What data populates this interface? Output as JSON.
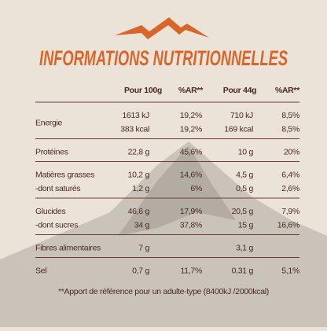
{
  "title": "INFORMATIONS NUTRITIONNELLES",
  "table": {
    "header": [
      "Pour 100g",
      "%AR**",
      "Pour 44g",
      "%AR**"
    ],
    "groups": [
      {
        "label": "Energie",
        "lines": [
          {
            "cells": [
              "1613 kJ",
              "19,2%",
              "710 kJ",
              "8,5%"
            ]
          },
          {
            "cells": [
              "383 kcal",
              "19,2%",
              "169 kcal",
              "8,5%"
            ]
          }
        ]
      },
      {
        "lines": [
          {
            "label": "Protéines",
            "cells": [
              "22,8 g",
              "45,6%",
              "10 g",
              "20%"
            ]
          }
        ]
      },
      {
        "lines": [
          {
            "label": "Matières grasses",
            "cells": [
              "10,2 g",
              "14,6%",
              "4,5 g",
              "6,4%"
            ]
          },
          {
            "label": "-dont saturés",
            "cells": [
              "1,2 g",
              "6%",
              "0,5 g",
              "2,6%"
            ]
          }
        ]
      },
      {
        "lines": [
          {
            "label": "Glucides",
            "cells": [
              "46,6 g",
              "17,9%",
              "20,5 g",
              "7,9%"
            ]
          },
          {
            "label": "-dont sucres",
            "cells": [
              "34 g",
              "37,8%",
              "15 g",
              "16,6%"
            ]
          }
        ]
      },
      {
        "lines": [
          {
            "label": "Fibres alimentaires",
            "cells": [
              "7 g",
              null,
              "3,1 g",
              null
            ]
          }
        ]
      },
      {
        "lines": [
          {
            "label": "Sel",
            "cells": [
              "0,7 g",
              "11,7%",
              "0,31 g",
              "5,1%"
            ]
          }
        ]
      }
    ]
  },
  "footnote": "**Apport de référence pour un adulte-type (8400kJ /2000kcal)"
}
